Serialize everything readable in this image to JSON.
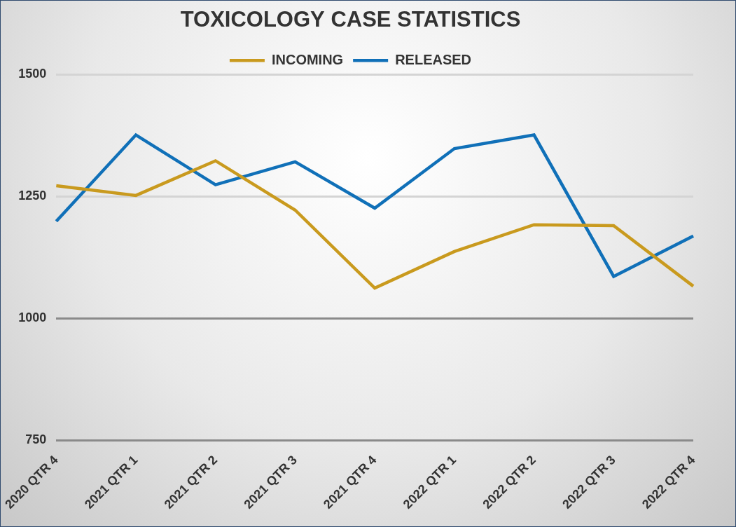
{
  "chart_data": {
    "type": "line",
    "title": "TOXICOLOGY CASE STATISTICS",
    "categories": [
      "2020 QTR 4",
      "2021 QTR 1",
      "2021 QTR 2",
      "2021 QTR 3",
      "2021 QTR 4",
      "2022 QTR 1",
      "2022 QTR 2",
      "2022 QTR 3",
      "2022 QTR 4"
    ],
    "series": [
      {
        "name": "INCOMING",
        "color": "#c99a1e",
        "values": [
          1272,
          1252,
          1323,
          1222,
          1062,
          1137,
          1192,
          1190,
          1066
        ]
      },
      {
        "name": "RELEASED",
        "color": "#1070b8",
        "values": [
          1199,
          1376,
          1274,
          1321,
          1226,
          1348,
          1376,
          1086,
          1169
        ]
      }
    ],
    "ylim": [
      750,
      1500
    ],
    "yticks": [
      750,
      1000,
      1250,
      1500
    ],
    "grid": true,
    "legend": "top"
  }
}
